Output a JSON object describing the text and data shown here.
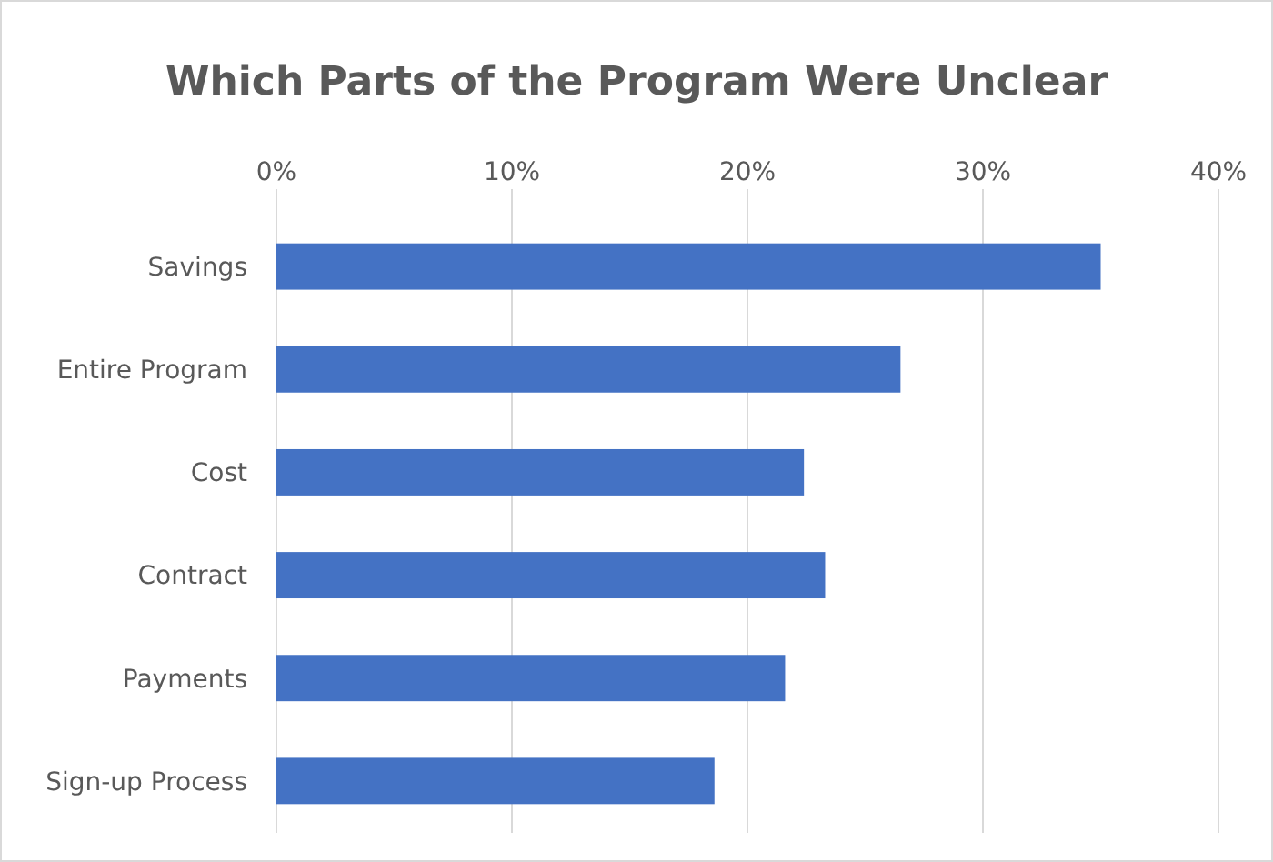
{
  "chart_data": {
    "type": "bar",
    "orientation": "horizontal",
    "title": "Which Parts of the Program Were Unclear",
    "categories": [
      "Savings",
      "Entire Program",
      "Cost",
      "Contract",
      "Payments",
      "Sign-up Process"
    ],
    "values": [
      35.0,
      26.5,
      22.4,
      23.3,
      21.6,
      18.6
    ],
    "color": "#4472c4",
    "xlim": [
      0,
      40
    ],
    "xticks": [
      {
        "value": 0,
        "label": "0%"
      },
      {
        "value": 10,
        "label": "10%"
      },
      {
        "value": 20,
        "label": "20%"
      },
      {
        "value": 30,
        "label": "30%"
      },
      {
        "value": 40,
        "label": "40%"
      }
    ],
    "grid": "x"
  }
}
